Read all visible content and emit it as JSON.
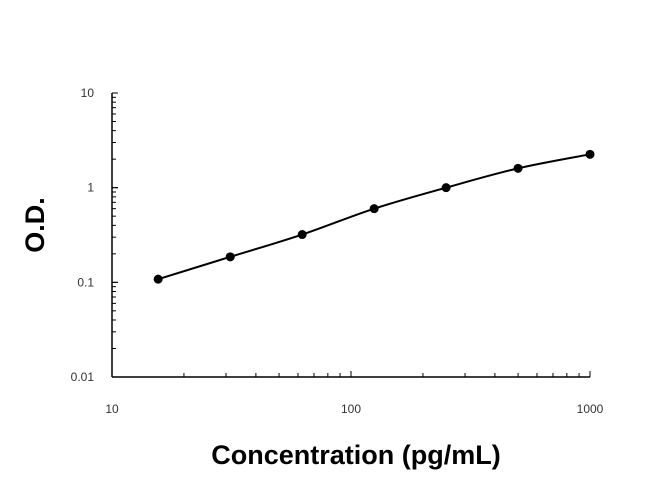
{
  "chart_data": {
    "type": "scatter",
    "title": "",
    "xlabel": "Concentration (pg/mL)",
    "ylabel": "O.D.",
    "x_scale": "log",
    "y_scale": "log",
    "xlim": [
      10,
      1000
    ],
    "ylim": [
      0.01,
      10
    ],
    "x_ticks": [
      "10",
      "100",
      "1000"
    ],
    "y_ticks": [
      "0.01",
      "0.1",
      "1",
      "10"
    ],
    "grid": false,
    "legend": "none",
    "series": [
      {
        "x": [
          15.6,
          31.25,
          62.5,
          125,
          250,
          500,
          1000
        ],
        "y": [
          0.108,
          0.186,
          0.32,
          0.6,
          1.0,
          1.6,
          2.25
        ],
        "markers": true,
        "line": "smooth curve fit",
        "color": "#000000"
      }
    ]
  }
}
